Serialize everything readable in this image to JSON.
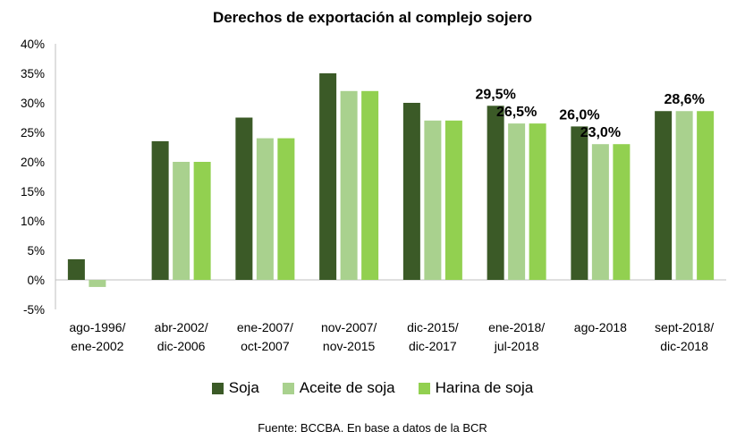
{
  "chart_data": {
    "type": "bar",
    "title": "Derechos de exportación al complejo sojero",
    "source": "Fuente: BCCBA. En base a datos de la BCR",
    "categories": [
      [
        "ago-1996/",
        "ene-2002"
      ],
      [
        "abr-2002/",
        "dic-2006"
      ],
      [
        "ene-2007/",
        "oct-2007"
      ],
      [
        "nov-2007/",
        "nov-2015"
      ],
      [
        "dic-2015/",
        "dic-2017"
      ],
      [
        "ene-2018/",
        "jul-2018"
      ],
      [
        "ago-2018"
      ],
      [
        "sept-2018/",
        "dic-2018"
      ]
    ],
    "series": [
      {
        "name": "Soja",
        "color": "#3b5a27",
        "values": [
          3.5,
          23.5,
          27.5,
          35,
          30,
          29.5,
          26,
          28.6
        ]
      },
      {
        "name": "Aceite de soja",
        "color": "#a9d18e",
        "values": [
          -1.2,
          20,
          24,
          32,
          27,
          26.5,
          23,
          28.6
        ]
      },
      {
        "name": "Harina de soja",
        "color": "#92d050",
        "values": [
          0,
          20,
          24,
          32,
          27,
          26.5,
          23,
          28.6
        ]
      }
    ],
    "data_labels": [
      {
        "series": 0,
        "category": 5,
        "text": "29,5%"
      },
      {
        "series": 1,
        "category": 5,
        "text": "26,5%"
      },
      {
        "series": 0,
        "category": 6,
        "text": "26,0%"
      },
      {
        "series": 1,
        "category": 6,
        "text": "23,0%"
      },
      {
        "series": 1,
        "category": 7,
        "text": "28,6%"
      }
    ],
    "ylim": [
      -5,
      40
    ],
    "yticks": [
      -5,
      0,
      5,
      10,
      15,
      20,
      25,
      30,
      35,
      40
    ],
    "ytick_labels": [
      "-5%",
      "0%",
      "5%",
      "10%",
      "15%",
      "20%",
      "25%",
      "30%",
      "35%",
      "40%"
    ],
    "xlabel": "",
    "ylabel": "",
    "grid": false,
    "legend_position": "bottom"
  }
}
